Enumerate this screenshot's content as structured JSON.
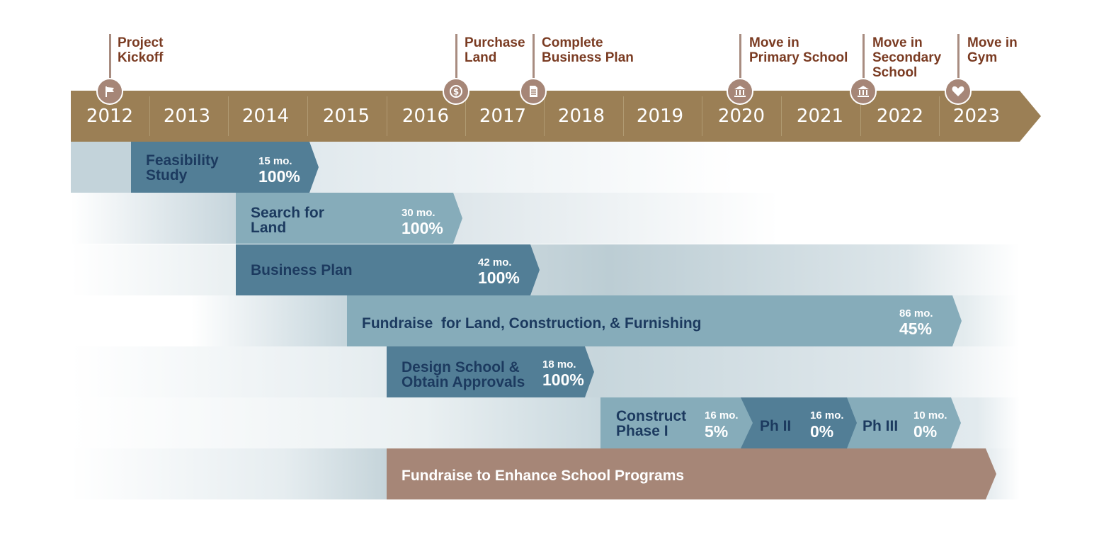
{
  "years": [
    "2012",
    "2013",
    "2014",
    "2015",
    "2016",
    "2017",
    "2018",
    "2019",
    "2020",
    "2021",
    "2022",
    "2023"
  ],
  "milestones": [
    {
      "label": "Project\nKickoff",
      "icon": "flag-icon"
    },
    {
      "label": "Purchase\nLand",
      "icon": "dollar-coin-icon"
    },
    {
      "label": "Complete\nBusiness Plan",
      "icon": "document-icon"
    },
    {
      "label": "Move in\nPrimary School",
      "icon": "building-columns-icon"
    },
    {
      "label": "Move in\nSecondary\nSchool",
      "icon": "building-columns-icon"
    },
    {
      "label": "Move in\nGym",
      "icon": "heart-icon"
    }
  ],
  "tasks": [
    {
      "label": "Feasibility\nStudy",
      "duration": "15 mo.",
      "percent": "100%"
    },
    {
      "label": "Search for\nLand",
      "duration": "30 mo.",
      "percent": "100%"
    },
    {
      "label": "Business Plan",
      "duration": "42 mo.",
      "percent": "100%"
    },
    {
      "label": "Fundraise  for Land, Construction, & Furnishing",
      "duration": "86 mo.",
      "percent": "45%"
    },
    {
      "label": "Design School &\nObtain Approvals",
      "duration": "18 mo.",
      "percent": "100%"
    },
    {
      "label": "Construct\nPhase I",
      "duration": "16 mo.",
      "percent": "5%"
    },
    {
      "label": "Ph II",
      "duration": "16 mo.",
      "percent": "0%"
    },
    {
      "label": "Ph III",
      "duration": "10 mo.",
      "percent": "0%"
    },
    {
      "label": "Fundraise to Enhance School Programs"
    }
  ],
  "colors": {
    "banner": "#9b7f55",
    "bar_dark": "#527e96",
    "bar_light": "#86acba",
    "bar_brown": "#a68677",
    "milestone_text": "#7a3b22",
    "label_navy": "#1c3a5f"
  }
}
